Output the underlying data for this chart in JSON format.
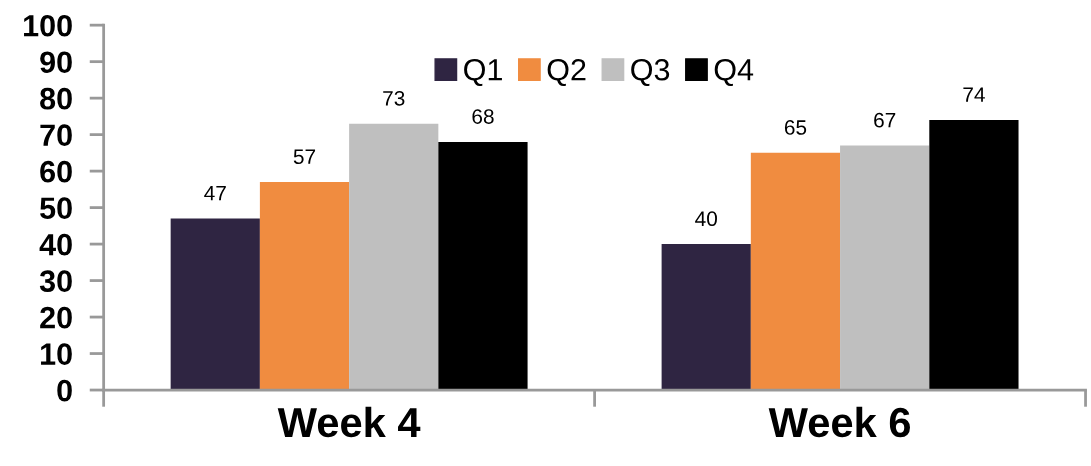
{
  "chart_data": {
    "type": "bar",
    "categories": [
      "Week 4",
      "Week 6"
    ],
    "series": [
      {
        "name": "Q1",
        "color": "#2f2542",
        "values": [
          47,
          40
        ]
      },
      {
        "name": "Q2",
        "color": "#f08c40",
        "values": [
          57,
          65
        ]
      },
      {
        "name": "Q3",
        "color": "#bfbfbf",
        "values": [
          73,
          67
        ]
      },
      {
        "name": "Q4",
        "color": "#000000",
        "values": [
          68,
          74
        ]
      }
    ],
    "ylim": [
      0,
      100
    ],
    "yticks": [
      0,
      10,
      20,
      30,
      40,
      50,
      60,
      70,
      80,
      90,
      100
    ],
    "data_labels": true,
    "legend": "top",
    "grid": false
  }
}
